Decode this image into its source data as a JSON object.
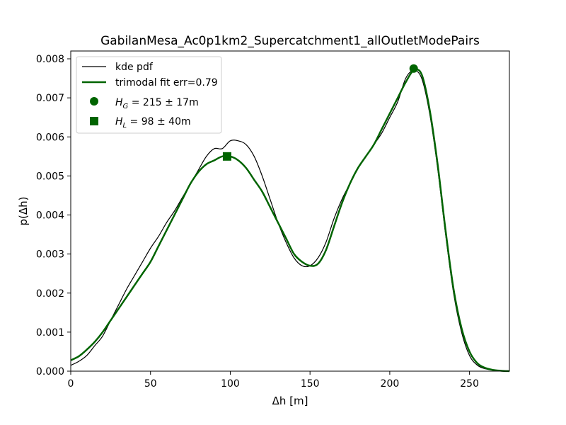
{
  "chart_data": {
    "type": "line",
    "title": "GabilanMesa_Ac0p1km2_Supercatchment1_allOutletModePairs",
    "xlabel": "Δh  [m]",
    "ylabel": "p(Δh)",
    "xlim": [
      0,
      275
    ],
    "ylim": [
      0,
      0.0082
    ],
    "xticks": [
      "0",
      "50",
      "100",
      "150",
      "200",
      "250"
    ],
    "yticks": [
      "0.000",
      "0.001",
      "0.002",
      "0.003",
      "0.004",
      "0.005",
      "0.006",
      "0.007",
      "0.008"
    ],
    "grid": false,
    "legend_position": "upper-left",
    "series": [
      {
        "name": "kde pdf",
        "color": "#000000",
        "x": [
          0,
          5,
          10,
          15,
          20,
          25,
          30,
          35,
          40,
          45,
          50,
          55,
          60,
          65,
          70,
          75,
          80,
          85,
          90,
          95,
          100,
          105,
          110,
          115,
          120,
          125,
          130,
          135,
          140,
          145,
          150,
          155,
          160,
          165,
          170,
          175,
          180,
          185,
          190,
          195,
          200,
          205,
          210,
          215,
          220,
          225,
          230,
          235,
          240,
          245,
          250,
          255,
          260,
          265,
          270,
          275
        ],
        "y": [
          0.00015,
          0.00025,
          0.0004,
          0.00065,
          0.0009,
          0.0013,
          0.0017,
          0.0021,
          0.00245,
          0.0028,
          0.00315,
          0.00345,
          0.0038,
          0.0041,
          0.00445,
          0.0048,
          0.00515,
          0.0055,
          0.0057,
          0.0057,
          0.0059,
          0.0059,
          0.0058,
          0.0055,
          0.005,
          0.0044,
          0.0038,
          0.0033,
          0.0029,
          0.0027,
          0.0027,
          0.0029,
          0.0033,
          0.0039,
          0.0044,
          0.0048,
          0.0052,
          0.0055,
          0.0058,
          0.0061,
          0.0065,
          0.0069,
          0.0075,
          0.0077,
          0.0075,
          0.0066,
          0.0052,
          0.0035,
          0.002,
          0.001,
          0.0004,
          0.00015,
          6e-05,
          3e-05,
          1e-05,
          0.0
        ]
      },
      {
        "name": "trimodal fit err=0.79",
        "color": "#006400",
        "x": [
          0,
          5,
          10,
          15,
          20,
          25,
          30,
          35,
          40,
          45,
          50,
          55,
          60,
          65,
          70,
          75,
          80,
          85,
          90,
          95,
          100,
          105,
          110,
          115,
          120,
          125,
          130,
          135,
          140,
          145,
          150,
          155,
          160,
          165,
          170,
          175,
          180,
          185,
          190,
          195,
          200,
          205,
          210,
          215,
          220,
          225,
          230,
          235,
          240,
          245,
          250,
          255,
          260,
          265,
          270,
          275
        ],
        "y": [
          0.00028,
          0.00038,
          0.00055,
          0.00075,
          0.001,
          0.0013,
          0.0016,
          0.0019,
          0.0022,
          0.0025,
          0.0028,
          0.0032,
          0.0036,
          0.004,
          0.0044,
          0.0048,
          0.0051,
          0.0053,
          0.0054,
          0.0055,
          0.0055,
          0.0054,
          0.0052,
          0.0049,
          0.0046,
          0.0042,
          0.0038,
          0.0034,
          0.003,
          0.0028,
          0.0027,
          0.00275,
          0.0031,
          0.0037,
          0.0043,
          0.0048,
          0.0052,
          0.0055,
          0.0058,
          0.0062,
          0.0066,
          0.007,
          0.0074,
          0.0077,
          0.0076,
          0.0067,
          0.0053,
          0.0036,
          0.0021,
          0.0011,
          0.0005,
          0.0002,
          8e-05,
          3e-05,
          1e-05,
          0.0
        ]
      }
    ],
    "markers": [
      {
        "name": "H_G = 215 ± 17m",
        "legend_main": "H",
        "legend_sub": "G",
        "legend_rest": " = 215 ± 17m",
        "shape": "circle",
        "color": "#006400",
        "x": 215,
        "y": 0.00775
      },
      {
        "name": "H_L = 98 ± 40m",
        "legend_main": "H",
        "legend_sub": "L",
        "legend_rest": " = 98 ± 40m",
        "shape": "square",
        "color": "#006400",
        "x": 98,
        "y": 0.0055
      }
    ]
  }
}
